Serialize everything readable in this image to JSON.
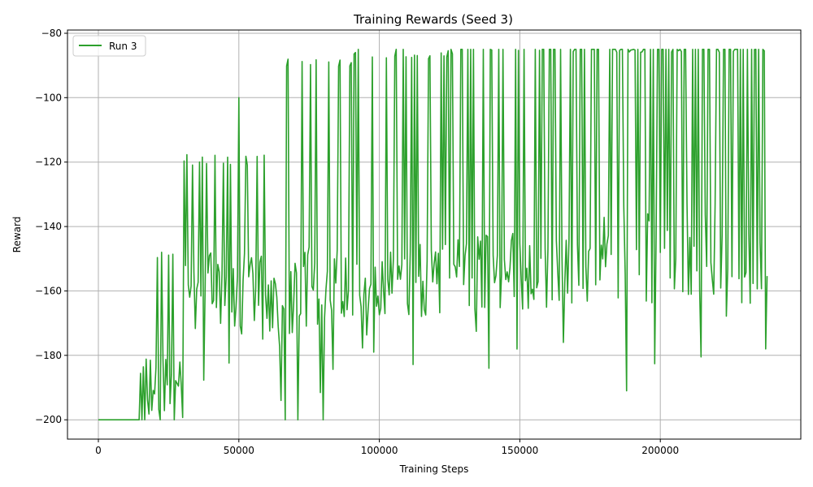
{
  "chart_data": {
    "type": "line",
    "title": "Training Rewards (Seed 3)",
    "xlabel": "Training Steps",
    "ylabel": "Reward",
    "xlim": [
      -11000,
      250000
    ],
    "ylim": [
      -206,
      -79
    ],
    "xticks": [
      0,
      50000,
      100000,
      150000,
      200000
    ],
    "yticks": [
      -200,
      -180,
      -160,
      -140,
      -120,
      -100,
      -80
    ],
    "grid": true,
    "legend_position": "upper-left",
    "series": [
      {
        "name": "Run 3",
        "color": "#2ca02c",
        "x_range": [
          0,
          238000
        ],
        "sample_every": 500,
        "flat_until": 15000,
        "flat_value": -200,
        "noise_seed": 3,
        "stage_profile": [
          {
            "until": 30000,
            "base": -193,
            "spread": 12,
            "spike_top": -150,
            "spike_rate": 0.22
          },
          {
            "until": 60000,
            "base": -162,
            "spread": 14,
            "spike_top": -121,
            "spike_rate": 0.18
          },
          {
            "until": 90000,
            "base": -160,
            "spread": 14,
            "spike_top": -92,
            "spike_rate": 0.2
          },
          {
            "until": 130000,
            "base": -156,
            "spread": 12,
            "spike_top": -88,
            "spike_rate": 0.26
          },
          {
            "until": 170000,
            "base": -154,
            "spread": 12,
            "spike_top": -86,
            "spike_rate": 0.32
          },
          {
            "until": 238000,
            "base": -148,
            "spread": 16,
            "spike_top": -86,
            "spike_rate": 0.48
          }
        ],
        "notable_points": [
          {
            "x": 50000,
            "y": -100
          },
          {
            "x": 65000,
            "y": -194
          },
          {
            "x": 66500,
            "y": -200
          },
          {
            "x": 71000,
            "y": -200
          },
          {
            "x": 80000,
            "y": -200
          },
          {
            "x": 98000,
            "y": -179
          },
          {
            "x": 139000,
            "y": -184
          },
          {
            "x": 188000,
            "y": -191
          },
          {
            "x": 237500,
            "y": -178
          }
        ]
      }
    ]
  }
}
